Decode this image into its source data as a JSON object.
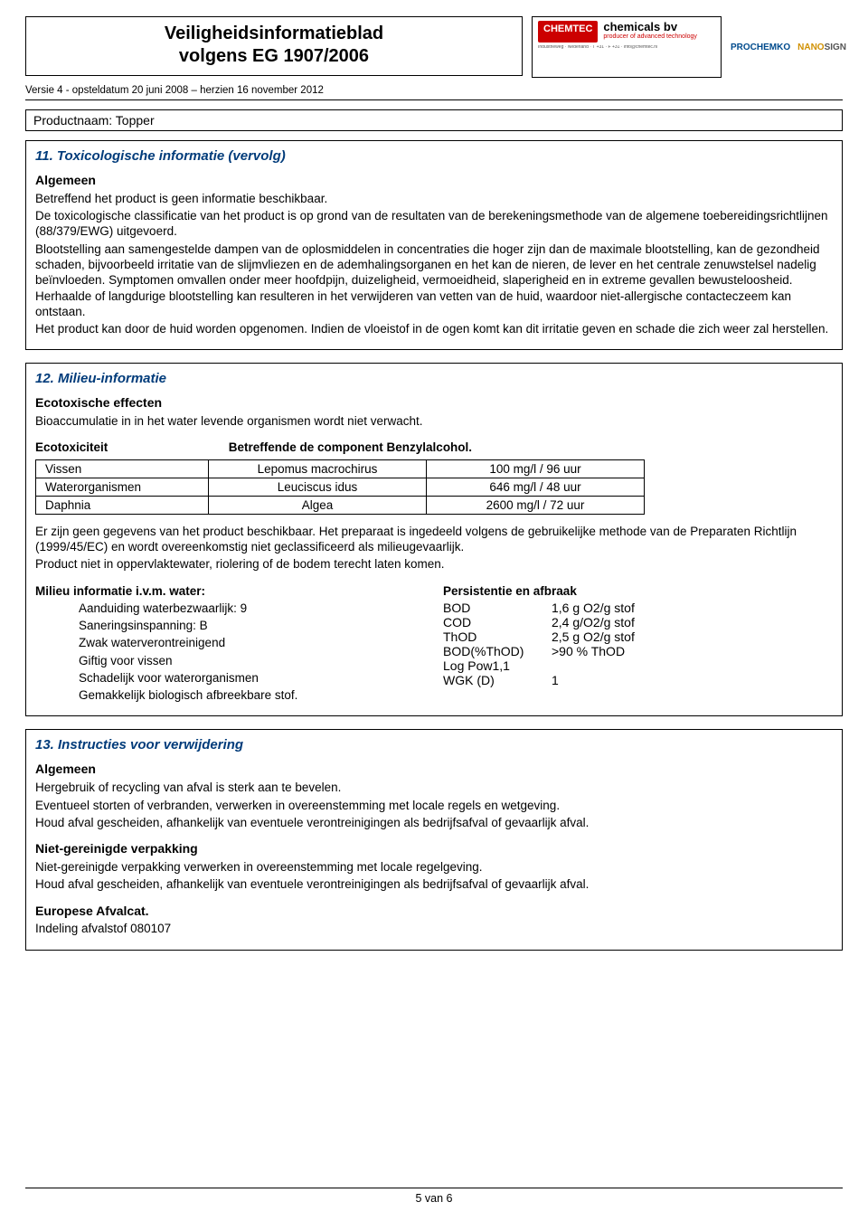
{
  "header": {
    "title_line1": "Veiligheidsinformatieblad",
    "title_line2": "volgens EG 1907/2006",
    "logo_chemtec": "CHEMTEC",
    "logo_chembv": "chemicals bv",
    "logo_chembv_sub": "producer of advanced technology",
    "logo_prochemko": "PROCHEMKO",
    "logo_nanosign": "NANOSIGN"
  },
  "meta": {
    "version_line": "Versie 4 - opsteldatum 20 juni 2008 – herzien 16 november 2012",
    "product_label": "Productnaam: Topper"
  },
  "section11": {
    "title": "11. Toxicologische informatie (vervolg)",
    "sub": "Algemeen",
    "body": "Betreffend het product is geen informatie beschikbaar.\nDe toxicologische classificatie van het product is op grond van de resultaten van de berekeningsmethode van de algemene toebereidingsrichtlijnen (88/379/EWG) uitgevoerd.\nBlootstelling aan samengestelde dampen van de oplosmiddelen in concentraties die hoger zijn dan de maximale blootstelling, kan de gezondheid schaden, bijvoorbeeld irritatie van de slijmvliezen en de ademhalingsorganen en het kan de nieren, de lever en het centrale zenuwstelsel nadelig beïnvloeden. Symptomen omvallen onder meer hoofdpijn, duizeligheid, vermoeidheid, slaperigheid en in extreme gevallen bewusteloosheid. Herhaalde of langdurige blootstelling kan resulteren in het verwijderen van vetten van de huid, waardoor niet-allergische contacteczeem kan ontstaan.\nHet product kan door de huid worden opgenomen. Indien de vloeistof in de ogen komt kan dit irritatie geven en schade die zich weer zal herstellen."
  },
  "section12": {
    "title": "12. Milieu-informatie",
    "sub1": "Ecotoxische effecten",
    "line1": "Bioaccumulatie in in het water levende organismen wordt niet verwacht.",
    "ecotox_label": "Ecotoxiciteit",
    "ecotox_component": "Betreffende de component Benzylalcohol.",
    "table": {
      "rows": [
        [
          "Vissen",
          "Lepomus macrochirus",
          "100 mg/l / 96 uur"
        ],
        [
          "Waterorganismen",
          "Leuciscus idus",
          "646 mg/l / 48 uur"
        ],
        [
          "Daphnia",
          "Algea",
          "2600 mg/l  / 72 uur"
        ]
      ],
      "col_widths": [
        "170px",
        "220px",
        "220px"
      ]
    },
    "para2": "Er zijn geen gegevens van het product beschikbaar. Het preparaat is ingedeeld volgens de gebruikelijke methode van de Preparaten Richtlijn (1999/45/EC) en wordt overeenkomstig niet geclassificeerd als milieugevaarlijk.\nProduct niet in oppervlaktewater, riolering of de bodem terecht laten komen.",
    "milieu_head": "Milieu informatie i.v.m. water:",
    "milieu_items": [
      "Aanduiding waterbezwaarlijk: 9",
      "Saneringsinspanning: B",
      "Zwak waterverontreinigend",
      "Giftig voor vissen",
      "Schadelijk voor waterorganismen",
      "Gemakkelijk biologisch afbreekbare stof."
    ],
    "persist_head": "Persistentie en afbraak",
    "persist_items": [
      {
        "k": "BOD",
        "v": "1,6 g O2/g stof"
      },
      {
        "k": "COD",
        "v": "2,4 g/O2/g stof"
      },
      {
        "k": "ThOD",
        "v": "2,5 g O2/g stof"
      },
      {
        "k": "BOD(%ThOD)",
        "v": ">90 % ThOD"
      },
      {
        "k": "Log Pow1,1",
        "v": ""
      },
      {
        "k": "WGK (D)",
        "v": "1"
      }
    ]
  },
  "section13": {
    "title": "13. Instructies voor verwijdering",
    "sub1": "Algemeen",
    "body1": "Hergebruik of recycling van afval is sterk aan te bevelen.\nEventueel storten of verbranden, verwerken in overeenstemming met locale regels en wetgeving.\nHoud afval gescheiden, afhankelijk van eventuele verontreinigingen als bedrijfsafval of gevaarlijk afval.",
    "sub2": "Niet-gereinigde verpakking",
    "body2": "Niet-gereinigde verpakking verwerken in overeenstemming met locale regelgeving.\nHoud afval gescheiden, afhankelijk van eventuele verontreinigingen als bedrijfsafval of gevaarlijk afval.",
    "sub3": "Europese Afvalcat.",
    "body3": "Indeling afvalstof 080107"
  },
  "footer": {
    "page": "5 van 6"
  }
}
